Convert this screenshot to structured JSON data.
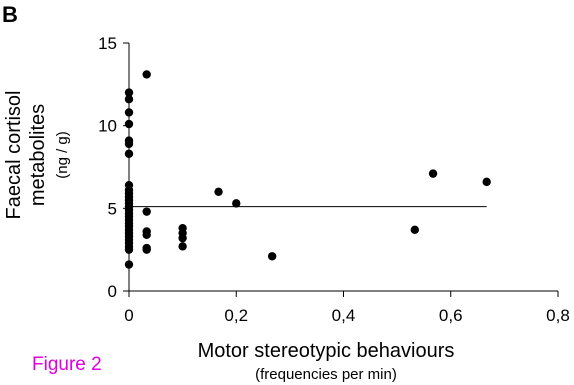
{
  "panel_label": "B",
  "figure_label": "Figure 2",
  "chart_data": {
    "type": "scatter",
    "title": "",
    "xlabel": "Motor stereotypic behaviours",
    "xlabel_sub": "(frequencies per min)",
    "ylabel_lines": [
      "Faecal cortisol",
      "metabolites"
    ],
    "ylabel_sub": "(ng / g)",
    "xlim": [
      0,
      0.8
    ],
    "ylim": [
      0,
      15
    ],
    "x_ticks": [
      "0",
      "0,2",
      "0,4",
      "0,6",
      "0,8"
    ],
    "x_tick_values": [
      0,
      0.2,
      0.4,
      0.6,
      0.8
    ],
    "y_ticks": [
      "0",
      "5",
      "10",
      "15"
    ],
    "y_tick_values": [
      0,
      5,
      10,
      15
    ],
    "grid": false,
    "legend": "none",
    "trend_line": {
      "x": [
        0,
        0.667
      ],
      "y": [
        5.1,
        5.1
      ]
    },
    "points": [
      {
        "x": 0,
        "y": 12.0
      },
      {
        "x": 0,
        "y": 11.6
      },
      {
        "x": 0,
        "y": 10.8
      },
      {
        "x": 0,
        "y": 10.1
      },
      {
        "x": 0,
        "y": 9.1
      },
      {
        "x": 0,
        "y": 8.9
      },
      {
        "x": 0,
        "y": 8.3
      },
      {
        "x": 0,
        "y": 6.4
      },
      {
        "x": 0,
        "y": 6.1
      },
      {
        "x": 0,
        "y": 5.9
      },
      {
        "x": 0,
        "y": 5.7
      },
      {
        "x": 0,
        "y": 5.5
      },
      {
        "x": 0,
        "y": 5.3
      },
      {
        "x": 0,
        "y": 5.1
      },
      {
        "x": 0,
        "y": 4.9
      },
      {
        "x": 0,
        "y": 4.7
      },
      {
        "x": 0,
        "y": 4.5
      },
      {
        "x": 0,
        "y": 4.3
      },
      {
        "x": 0,
        "y": 4.1
      },
      {
        "x": 0,
        "y": 3.9
      },
      {
        "x": 0,
        "y": 3.7
      },
      {
        "x": 0,
        "y": 3.5
      },
      {
        "x": 0,
        "y": 3.3
      },
      {
        "x": 0,
        "y": 3.1
      },
      {
        "x": 0,
        "y": 2.9
      },
      {
        "x": 0,
        "y": 2.7
      },
      {
        "x": 0,
        "y": 2.5
      },
      {
        "x": 0,
        "y": 1.6
      },
      {
        "x": 0.033,
        "y": 13.1
      },
      {
        "x": 0.033,
        "y": 4.8
      },
      {
        "x": 0.033,
        "y": 3.6
      },
      {
        "x": 0.033,
        "y": 3.4
      },
      {
        "x": 0.033,
        "y": 2.6
      },
      {
        "x": 0.033,
        "y": 2.5
      },
      {
        "x": 0.1,
        "y": 3.8
      },
      {
        "x": 0.1,
        "y": 3.5
      },
      {
        "x": 0.1,
        "y": 3.2
      },
      {
        "x": 0.1,
        "y": 2.7
      },
      {
        "x": 0.167,
        "y": 6.0
      },
      {
        "x": 0.2,
        "y": 5.3
      },
      {
        "x": 0.267,
        "y": 2.1
      },
      {
        "x": 0.533,
        "y": 3.7
      },
      {
        "x": 0.567,
        "y": 7.1
      },
      {
        "x": 0.667,
        "y": 6.6
      }
    ]
  }
}
